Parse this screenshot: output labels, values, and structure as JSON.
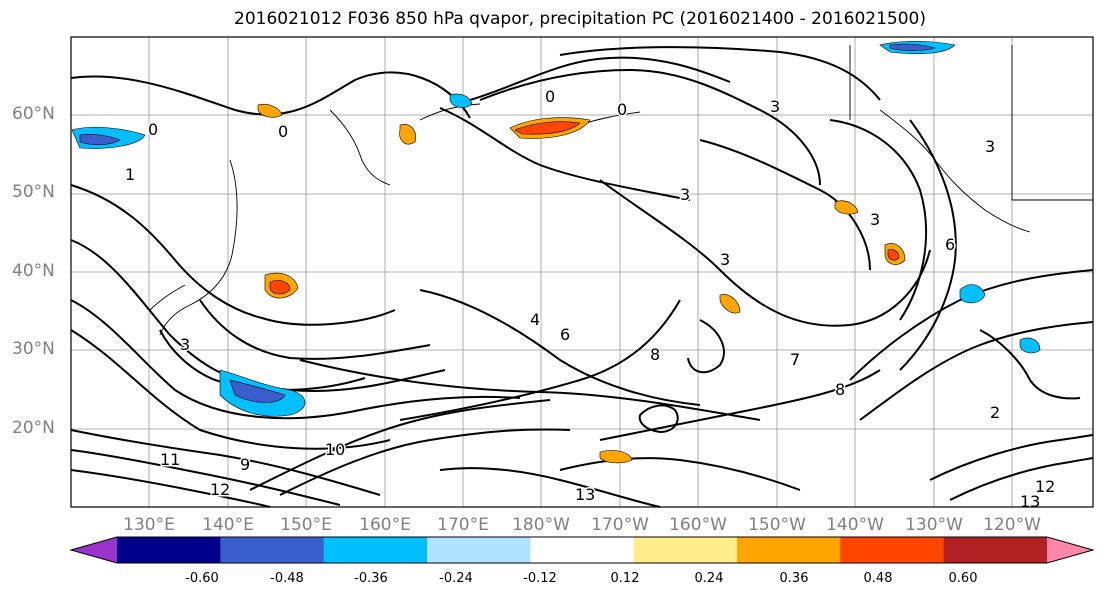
{
  "title": "2016021012 F036 850 hPa qvapor, precipitation PC (2016021400 - 2016021500)",
  "lat_labels": [
    "60°N",
    "50°N",
    "40°N",
    "30°N",
    "20°N"
  ],
  "lon_labels": [
    "130°E",
    "140°E",
    "150°E",
    "160°E",
    "170°E",
    "180°W",
    "170°W",
    "160°W",
    "150°W",
    "140°W",
    "130°W",
    "120°W"
  ],
  "colorbar": {
    "colors": [
      "#9a32cd",
      "#00008b",
      "#3a5fcd",
      "#00bfff",
      "#b0e2ff",
      "#ffffff",
      "#ffec8b",
      "#ffa500",
      "#ff4500",
      "#b22222",
      "#ff88aa"
    ],
    "tick_labels": [
      "-0.60",
      "-0.48",
      "-0.36",
      "-0.24",
      "-0.12",
      "0.12",
      "0.24",
      "0.36",
      "0.48",
      "0.60"
    ]
  },
  "contour_labels": [
    "0",
    "0",
    "0",
    "0",
    "1",
    "3",
    "3",
    "3",
    "3",
    "3",
    "3",
    "4",
    "6",
    "6",
    "7",
    "8",
    "8",
    "9",
    "10",
    "11",
    "12",
    "12",
    "13",
    "13",
    "2"
  ]
}
